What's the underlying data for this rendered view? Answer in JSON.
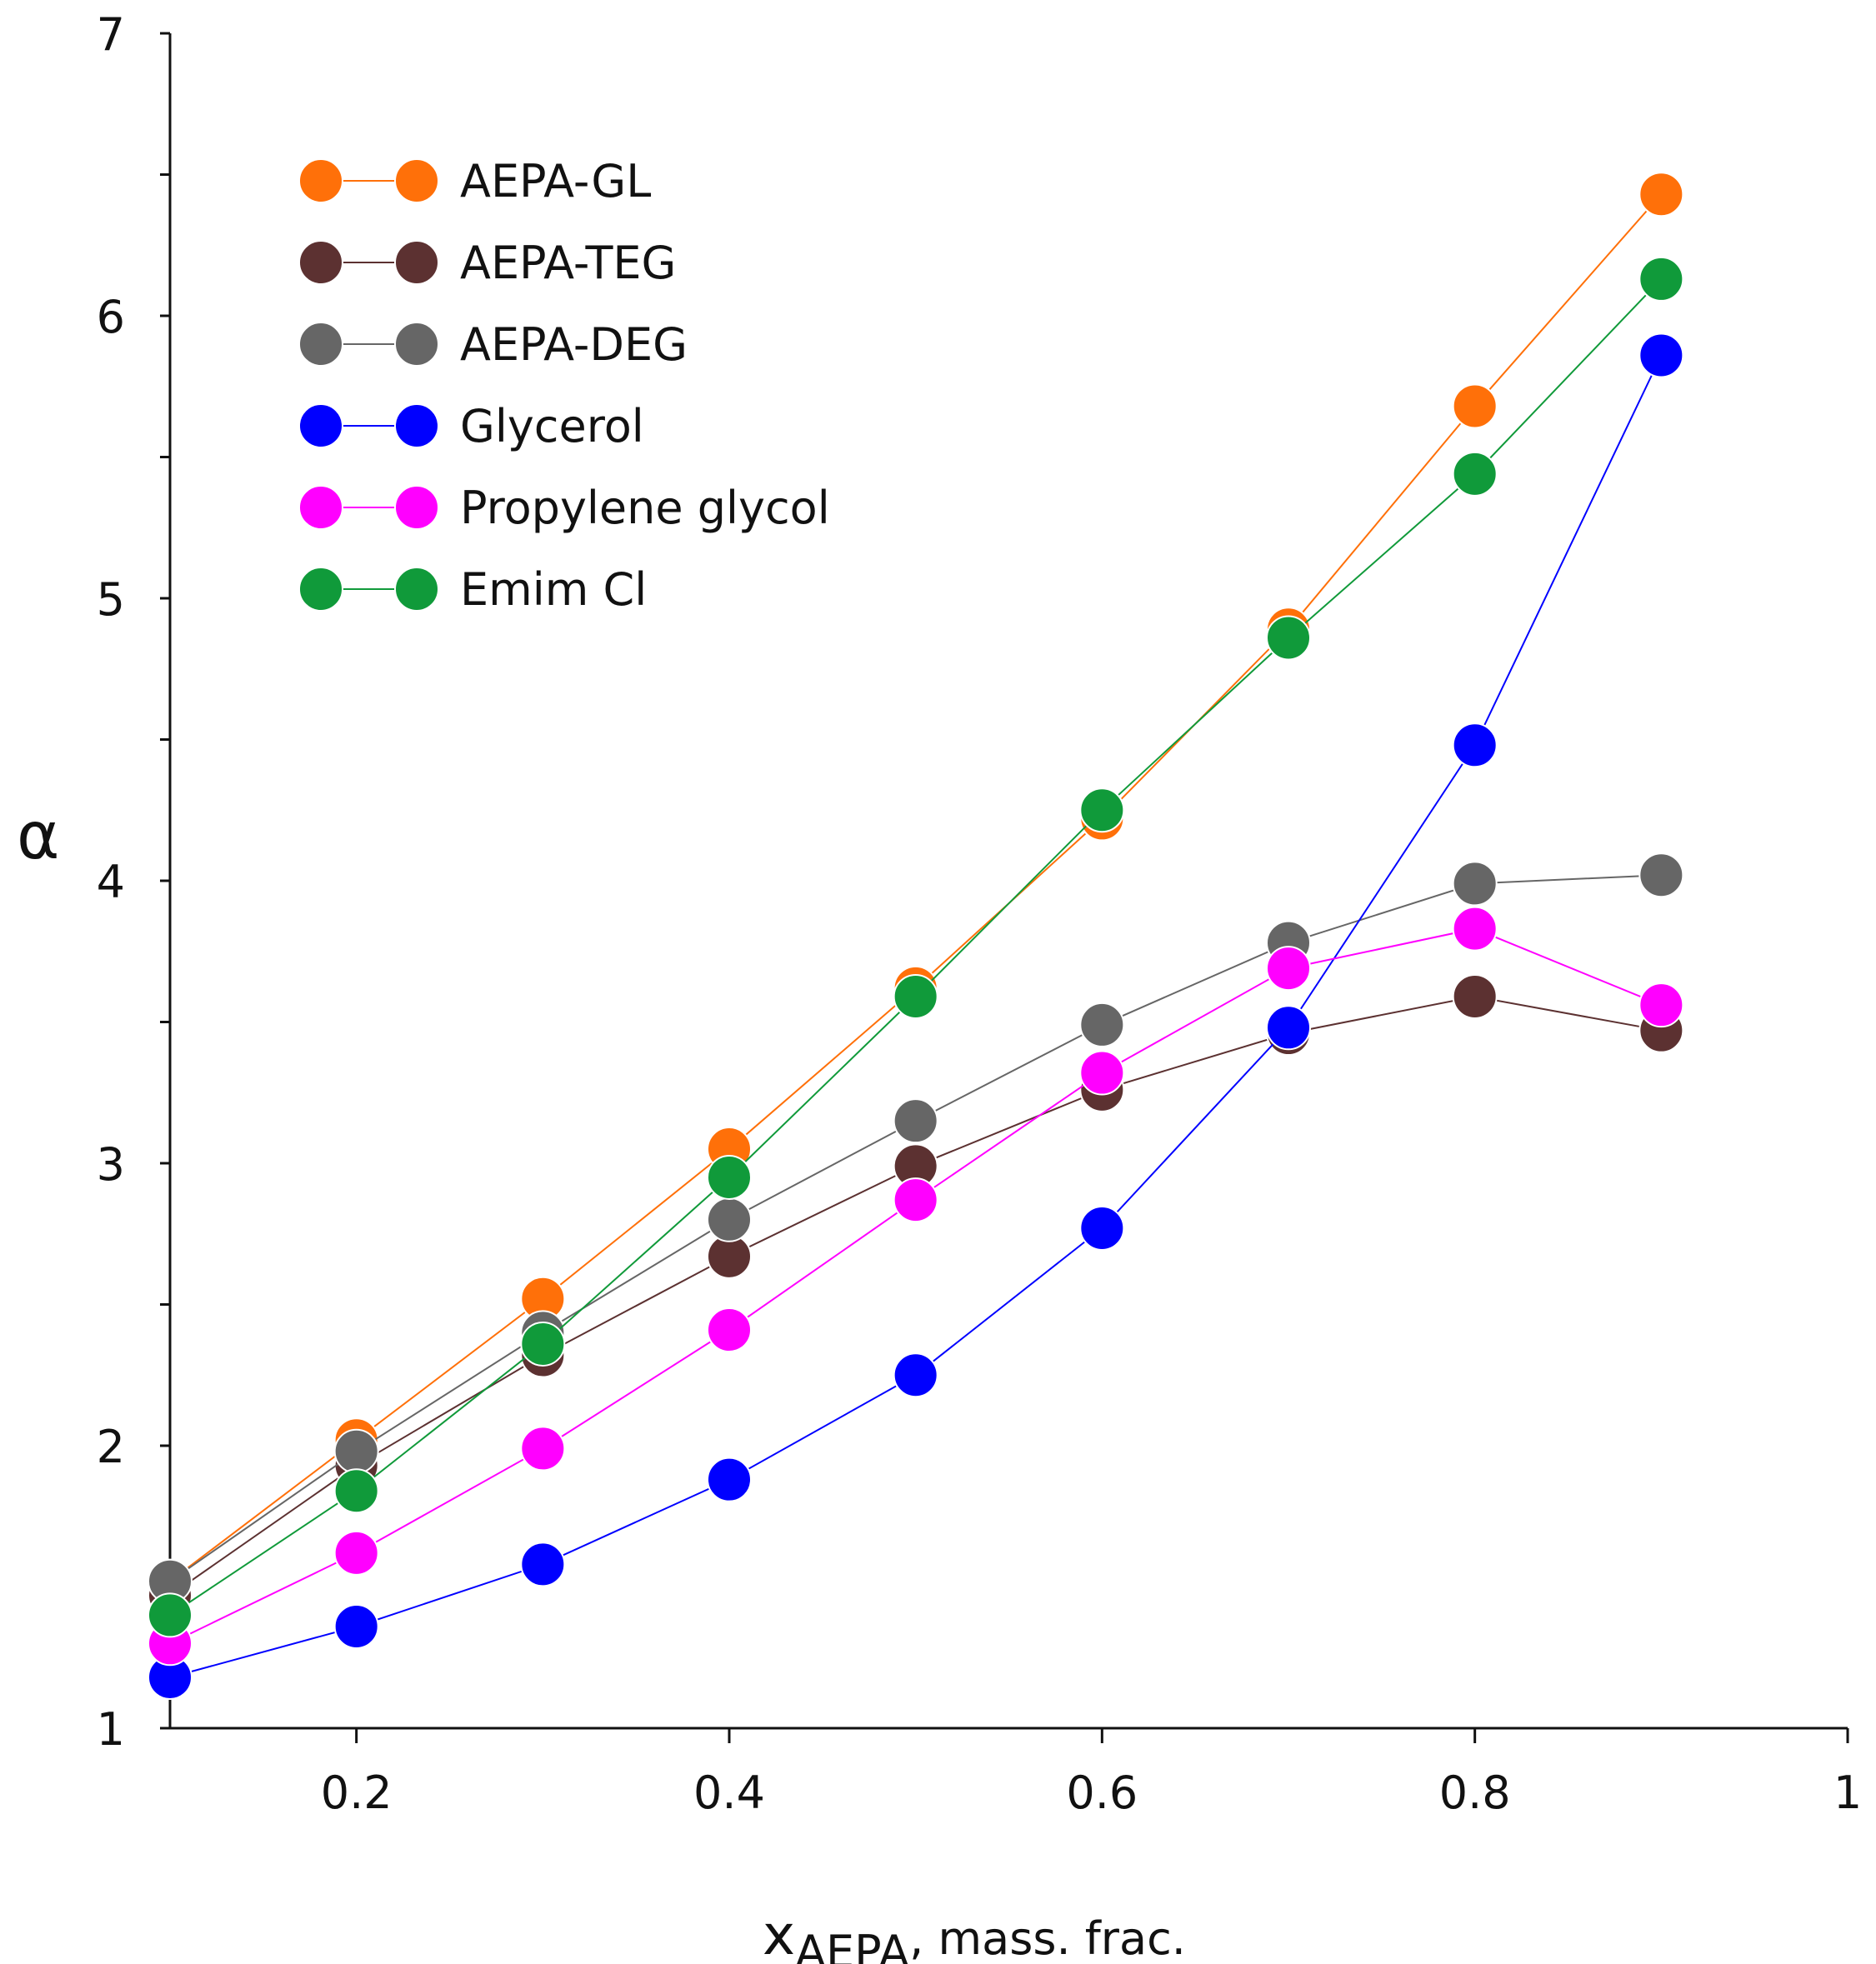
{
  "chart_data": {
    "type": "line",
    "title": "",
    "xlabel_main": "x",
    "xlabel_sub": "AEPA",
    "xlabel_rest": ", mass. frac.",
    "ylabel": "α",
    "xlim": [
      0.1,
      1.0
    ],
    "ylim": [
      1,
      7
    ],
    "x_ticks": [
      0.2,
      0.4,
      0.6,
      0.8,
      1.0
    ],
    "x_tick_labels": [
      "0.2",
      "0.4",
      "0.6",
      "0.8",
      "1"
    ],
    "x_minor_ticks": [
      0.3,
      0.5,
      0.7,
      0.9
    ],
    "y_ticks": [
      1,
      2,
      3,
      4,
      5,
      6,
      7
    ],
    "y_tick_labels": [
      "1",
      "2",
      "3",
      "4",
      "5",
      "6",
      "7"
    ],
    "y_minor_ticks": [
      1.5,
      2.5,
      3.5,
      4.5,
      5.5,
      6.5
    ],
    "grid": false,
    "legend_position": "top-left",
    "x": [
      0.1,
      0.2,
      0.3,
      0.4,
      0.5,
      0.6,
      0.7,
      0.8,
      0.9
    ],
    "series": [
      {
        "name": "AEPA-GL",
        "color": "#FF7009",
        "values": [
          1.52,
          2.02,
          2.52,
          3.05,
          3.62,
          4.22,
          4.89,
          5.68,
          6.43
        ]
      },
      {
        "name": "AEPA-TEG",
        "color": "#5C3131",
        "values": [
          1.47,
          1.93,
          2.32,
          2.67,
          2.99,
          3.26,
          3.46,
          3.59,
          3.47
        ]
      },
      {
        "name": "AEPA-DEG",
        "color": "#666666",
        "values": [
          1.52,
          1.98,
          2.4,
          2.8,
          3.15,
          3.49,
          3.78,
          3.99,
          4.02
        ]
      },
      {
        "name": "Glycerol",
        "color": "#0000FF",
        "values": [
          1.18,
          1.36,
          1.58,
          1.88,
          2.25,
          2.77,
          3.48,
          4.48,
          5.86
        ]
      },
      {
        "name": "Propylene glycol",
        "color": "#FF00FF",
        "values": [
          1.3,
          1.62,
          1.99,
          2.41,
          2.87,
          3.32,
          3.69,
          3.83,
          3.56
        ]
      },
      {
        "name": "Emim Cl",
        "color": "#109A3A",
        "values": [
          1.4,
          1.84,
          2.36,
          2.95,
          3.59,
          4.25,
          4.86,
          5.44,
          6.13
        ]
      }
    ]
  }
}
